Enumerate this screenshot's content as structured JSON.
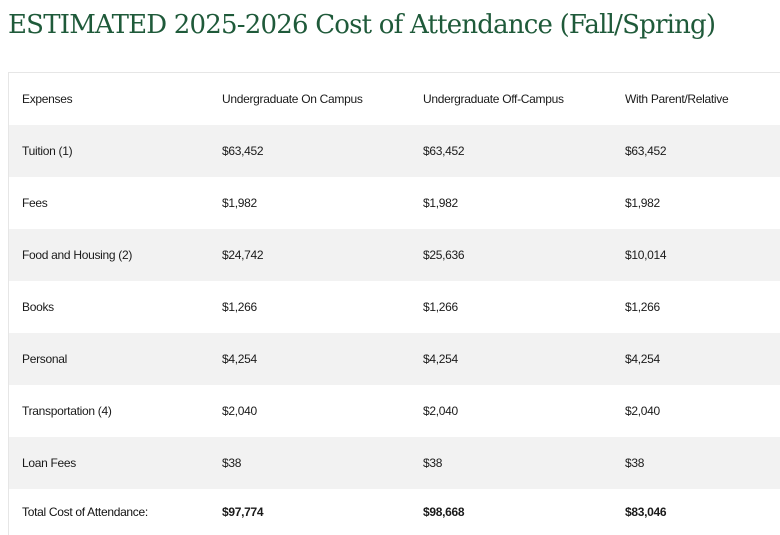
{
  "title": "ESTIMATED 2025-2026 Cost of Attendance (Fall/Spring)",
  "table": {
    "headers": [
      "Expenses",
      "Undergraduate On Campus",
      "Undergraduate Off-Campus",
      "With Parent/Relative"
    ],
    "rows": [
      [
        "Tuition (1)",
        "$63,452",
        "$63,452",
        "$63,452"
      ],
      [
        "Fees",
        "$1,982",
        "$1,982",
        "$1,982"
      ],
      [
        "Food and Housing (2)",
        "$24,742",
        "$25,636",
        "$10,014"
      ],
      [
        "Books",
        "$1,266",
        "$1,266",
        "$1,266"
      ],
      [
        "Personal",
        "$4,254",
        "$4,254",
        "$4,254"
      ],
      [
        "Transportation (4)",
        "$2,040",
        "$2,040",
        "$2,040"
      ],
      [
        "Loan Fees",
        "$38",
        "$38",
        "$38"
      ]
    ],
    "total": [
      "Total Cost of Attendance:",
      "$97,774",
      "$98,668",
      "$83,046"
    ]
  },
  "colors": {
    "title": "#1f5a3a",
    "stripe": "#f2f2f2",
    "text": "#1a1a1a"
  }
}
